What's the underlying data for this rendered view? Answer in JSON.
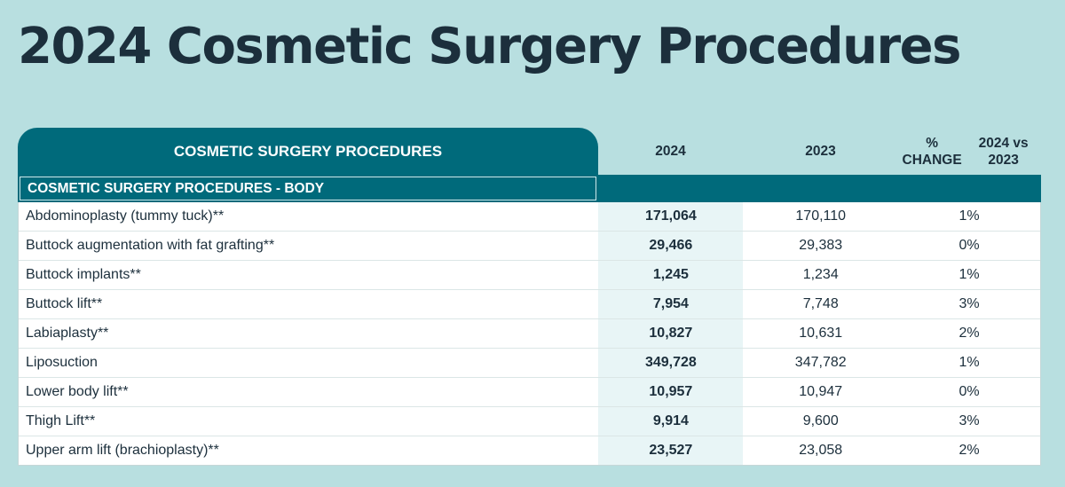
{
  "title": "2024 Cosmetic Surgery Procedures",
  "colors": {
    "background": "#b8dfe0",
    "header_teal": "#006a7b",
    "title_text": "#1c2f3c",
    "highlight_column": "#e8f5f6"
  },
  "table": {
    "header": {
      "main": "COSMETIC SURGERY PROCEDURES",
      "col_2024": "2024",
      "col_2023": "2023",
      "col_change_line1": "% CHANGE",
      "col_change_line2": "2024 vs 2023"
    },
    "section": "COSMETIC SURGERY PROCEDURES - BODY",
    "rows": [
      {
        "name": "Abdominoplasty (tummy tuck)**",
        "v2024": "171,064",
        "v2023": "170,110",
        "change": "1%"
      },
      {
        "name": "Buttock augmentation with fat grafting**",
        "v2024": "29,466",
        "v2023": "29,383",
        "change": "0%"
      },
      {
        "name": "Buttock implants**",
        "v2024": "1,245",
        "v2023": "1,234",
        "change": "1%"
      },
      {
        "name": "Buttock lift**",
        "v2024": "7,954",
        "v2023": "7,748",
        "change": "3%"
      },
      {
        "name": "Labiaplasty**",
        "v2024": "10,827",
        "v2023": "10,631",
        "change": "2%"
      },
      {
        "name": "Liposuction",
        "v2024": "349,728",
        "v2023": "347,782",
        "change": "1%"
      },
      {
        "name": "Lower body lift**",
        "v2024": "10,957",
        "v2023": "10,947",
        "change": "0%"
      },
      {
        "name": "Thigh Lift**",
        "v2024": "9,914",
        "v2023": "9,600",
        "change": "3%"
      },
      {
        "name": "Upper arm lift (brachioplasty)**",
        "v2024": "23,527",
        "v2023": "23,058",
        "change": "2%"
      }
    ]
  }
}
